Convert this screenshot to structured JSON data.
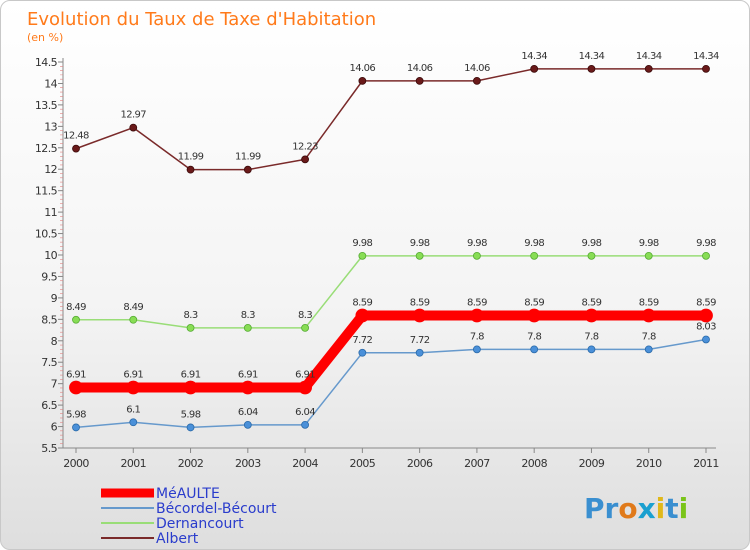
{
  "chart_data": {
    "type": "line",
    "title": "Evolution du Taux de Taxe d'Habitation",
    "ylabel": "(en %)",
    "xlabel": "",
    "categories": [
      "2000",
      "2001",
      "2002",
      "2003",
      "2004",
      "2005",
      "2006",
      "2007",
      "2008",
      "2009",
      "2010",
      "2011"
    ],
    "ylim": [
      5.5,
      14.5
    ],
    "yticks": [
      "5.5",
      "6",
      "6.5",
      "7",
      "7.5",
      "8",
      "8.5",
      "9",
      "9.5",
      "10",
      "10.5",
      "11",
      "11.5",
      "12",
      "12.5",
      "13",
      "13.5",
      "14",
      "14.5"
    ],
    "grid": false,
    "legend_position": "bottom-left",
    "series": [
      {
        "name": "MéAULTE",
        "color": "#ff0000",
        "values": [
          6.91,
          6.91,
          6.91,
          6.91,
          6.91,
          8.59,
          8.59,
          8.59,
          8.59,
          8.59,
          8.59,
          8.59
        ],
        "labels": [
          "6.91",
          "6.91",
          "6.91",
          "6.91",
          "6.91",
          "8.59",
          "8.59",
          "8.59",
          "8.59",
          "8.59",
          "8.59",
          "8.59"
        ]
      },
      {
        "name": "Bécordel-Bécourt",
        "color": "#6699cc",
        "values": [
          5.98,
          6.1,
          5.98,
          6.04,
          6.04,
          7.72,
          7.72,
          7.8,
          7.8,
          7.8,
          7.8,
          8.03
        ],
        "labels": [
          "5.98",
          "6.1",
          "5.98",
          "6.04",
          "6.04",
          "7.72",
          "7.72",
          "7.8",
          "7.8",
          "7.8",
          "7.8",
          "8.03"
        ]
      },
      {
        "name": "Dernancourt",
        "color": "#99dd77",
        "values": [
          8.49,
          8.49,
          8.3,
          8.3,
          8.3,
          9.98,
          9.98,
          9.98,
          9.98,
          9.98,
          9.98,
          9.98
        ],
        "labels": [
          "8.49",
          "8.49",
          "8.3",
          "8.3",
          "8.3",
          "9.98",
          "9.98",
          "9.98",
          "9.98",
          "9.98",
          "9.98",
          "9.98"
        ]
      },
      {
        "name": "Albert",
        "color": "#7a2a2a",
        "values": [
          12.48,
          12.97,
          11.99,
          11.99,
          12.23,
          14.06,
          14.06,
          14.06,
          14.34,
          14.34,
          14.34,
          14.34
        ],
        "labels": [
          "12.48",
          "12.97",
          "11.99",
          "11.99",
          "12.23",
          "14.06",
          "14.06",
          "14.06",
          "14.34",
          "14.34",
          "14.34",
          "14.34"
        ]
      }
    ]
  },
  "logo": {
    "text": "Proxiti"
  }
}
